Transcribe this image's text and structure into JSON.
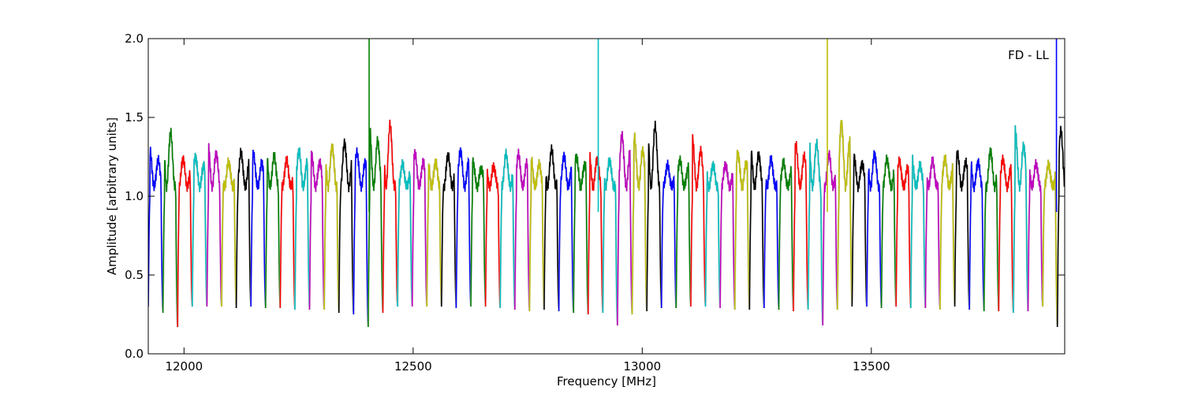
{
  "chart_data": {
    "type": "line",
    "title": "",
    "annotation": "FD - LL",
    "xlabel": "Frequency [MHz]",
    "ylabel": "Amplitude [arbitrary units]",
    "xlim": [
      11922,
      13922
    ],
    "ylim": [
      0.0,
      2.0
    ],
    "xticks": [
      12000,
      12500,
      13000,
      13500
    ],
    "xtick_labels": [
      "12000",
      "12500",
      "13000",
      "13500"
    ],
    "yticks": [
      0.0,
      0.5,
      1.0,
      1.5,
      2.0
    ],
    "ytick_labels": [
      "0.0",
      "0.5",
      "1.0",
      "1.5",
      "2.0"
    ],
    "grid": false,
    "legend": "none",
    "channel_start": 11922,
    "channel_width": 32,
    "color_cycle": [
      "#0000ff",
      "#008000",
      "#ff0000",
      "#00bfbf",
      "#bf00bf",
      "#bfbf00",
      "#000000"
    ],
    "envelope_color": "#c0c0c0",
    "channel_peaks": [
      1.29,
      1.49,
      1.26,
      1.26,
      1.34,
      1.25,
      1.3,
      1.27,
      1.31,
      1.26,
      1.31,
      1.27,
      1.38,
      1.38,
      1.29,
      1.45,
      1.54,
      1.22,
      1.28,
      1.26,
      1.3,
      1.31,
      1.22,
      1.22,
      1.3,
      1.28,
      1.25,
      1.35,
      1.28,
      1.26,
      1.29,
      1.26,
      1.42,
      1.38,
      1.55,
      1.22,
      1.24,
      1.37,
      1.23,
      1.22,
      1.28,
      1.33,
      1.27,
      1.23,
      1.33,
      1.41,
      1.3,
      1.5,
      1.26,
      1.32,
      1.26,
      1.23,
      1.24,
      1.26,
      1.26,
      1.28,
      1.26,
      1.33,
      1.25,
      1.42,
      1.24,
      1.22,
      1.44
    ],
    "channel_troughs": [
      0.26,
      0.17,
      0.3,
      0.3,
      0.3,
      0.29,
      0.3,
      0.29,
      0.29,
      0.28,
      0.28,
      0.28,
      0.26,
      0.25,
      0.17,
      0.26,
      0.3,
      0.3,
      0.3,
      0.3,
      0.29,
      0.3,
      0.3,
      0.29,
      0.28,
      0.27,
      0.28,
      0.27,
      0.26,
      0.25,
      0.26,
      0.18,
      0.25,
      0.27,
      0.29,
      0.29,
      0.3,
      0.3,
      0.29,
      0.28,
      0.28,
      0.29,
      0.28,
      0.27,
      0.28,
      0.18,
      0.28,
      0.3,
      0.3,
      0.29,
      0.3,
      0.29,
      0.29,
      0.28,
      0.3,
      0.28,
      0.27,
      0.27,
      0.26,
      0.27,
      0.3,
      0.17
    ],
    "spikes": [
      {
        "x": 12404,
        "y": 2.0,
        "color": "#008000"
      },
      {
        "x": 12904,
        "y": 2.0,
        "color": "#00bfbf"
      },
      {
        "x": 13404,
        "y": 2.0,
        "color": "#bfbf00"
      },
      {
        "x": 13904,
        "y": 2.0,
        "color": "#0000ff"
      }
    ]
  }
}
